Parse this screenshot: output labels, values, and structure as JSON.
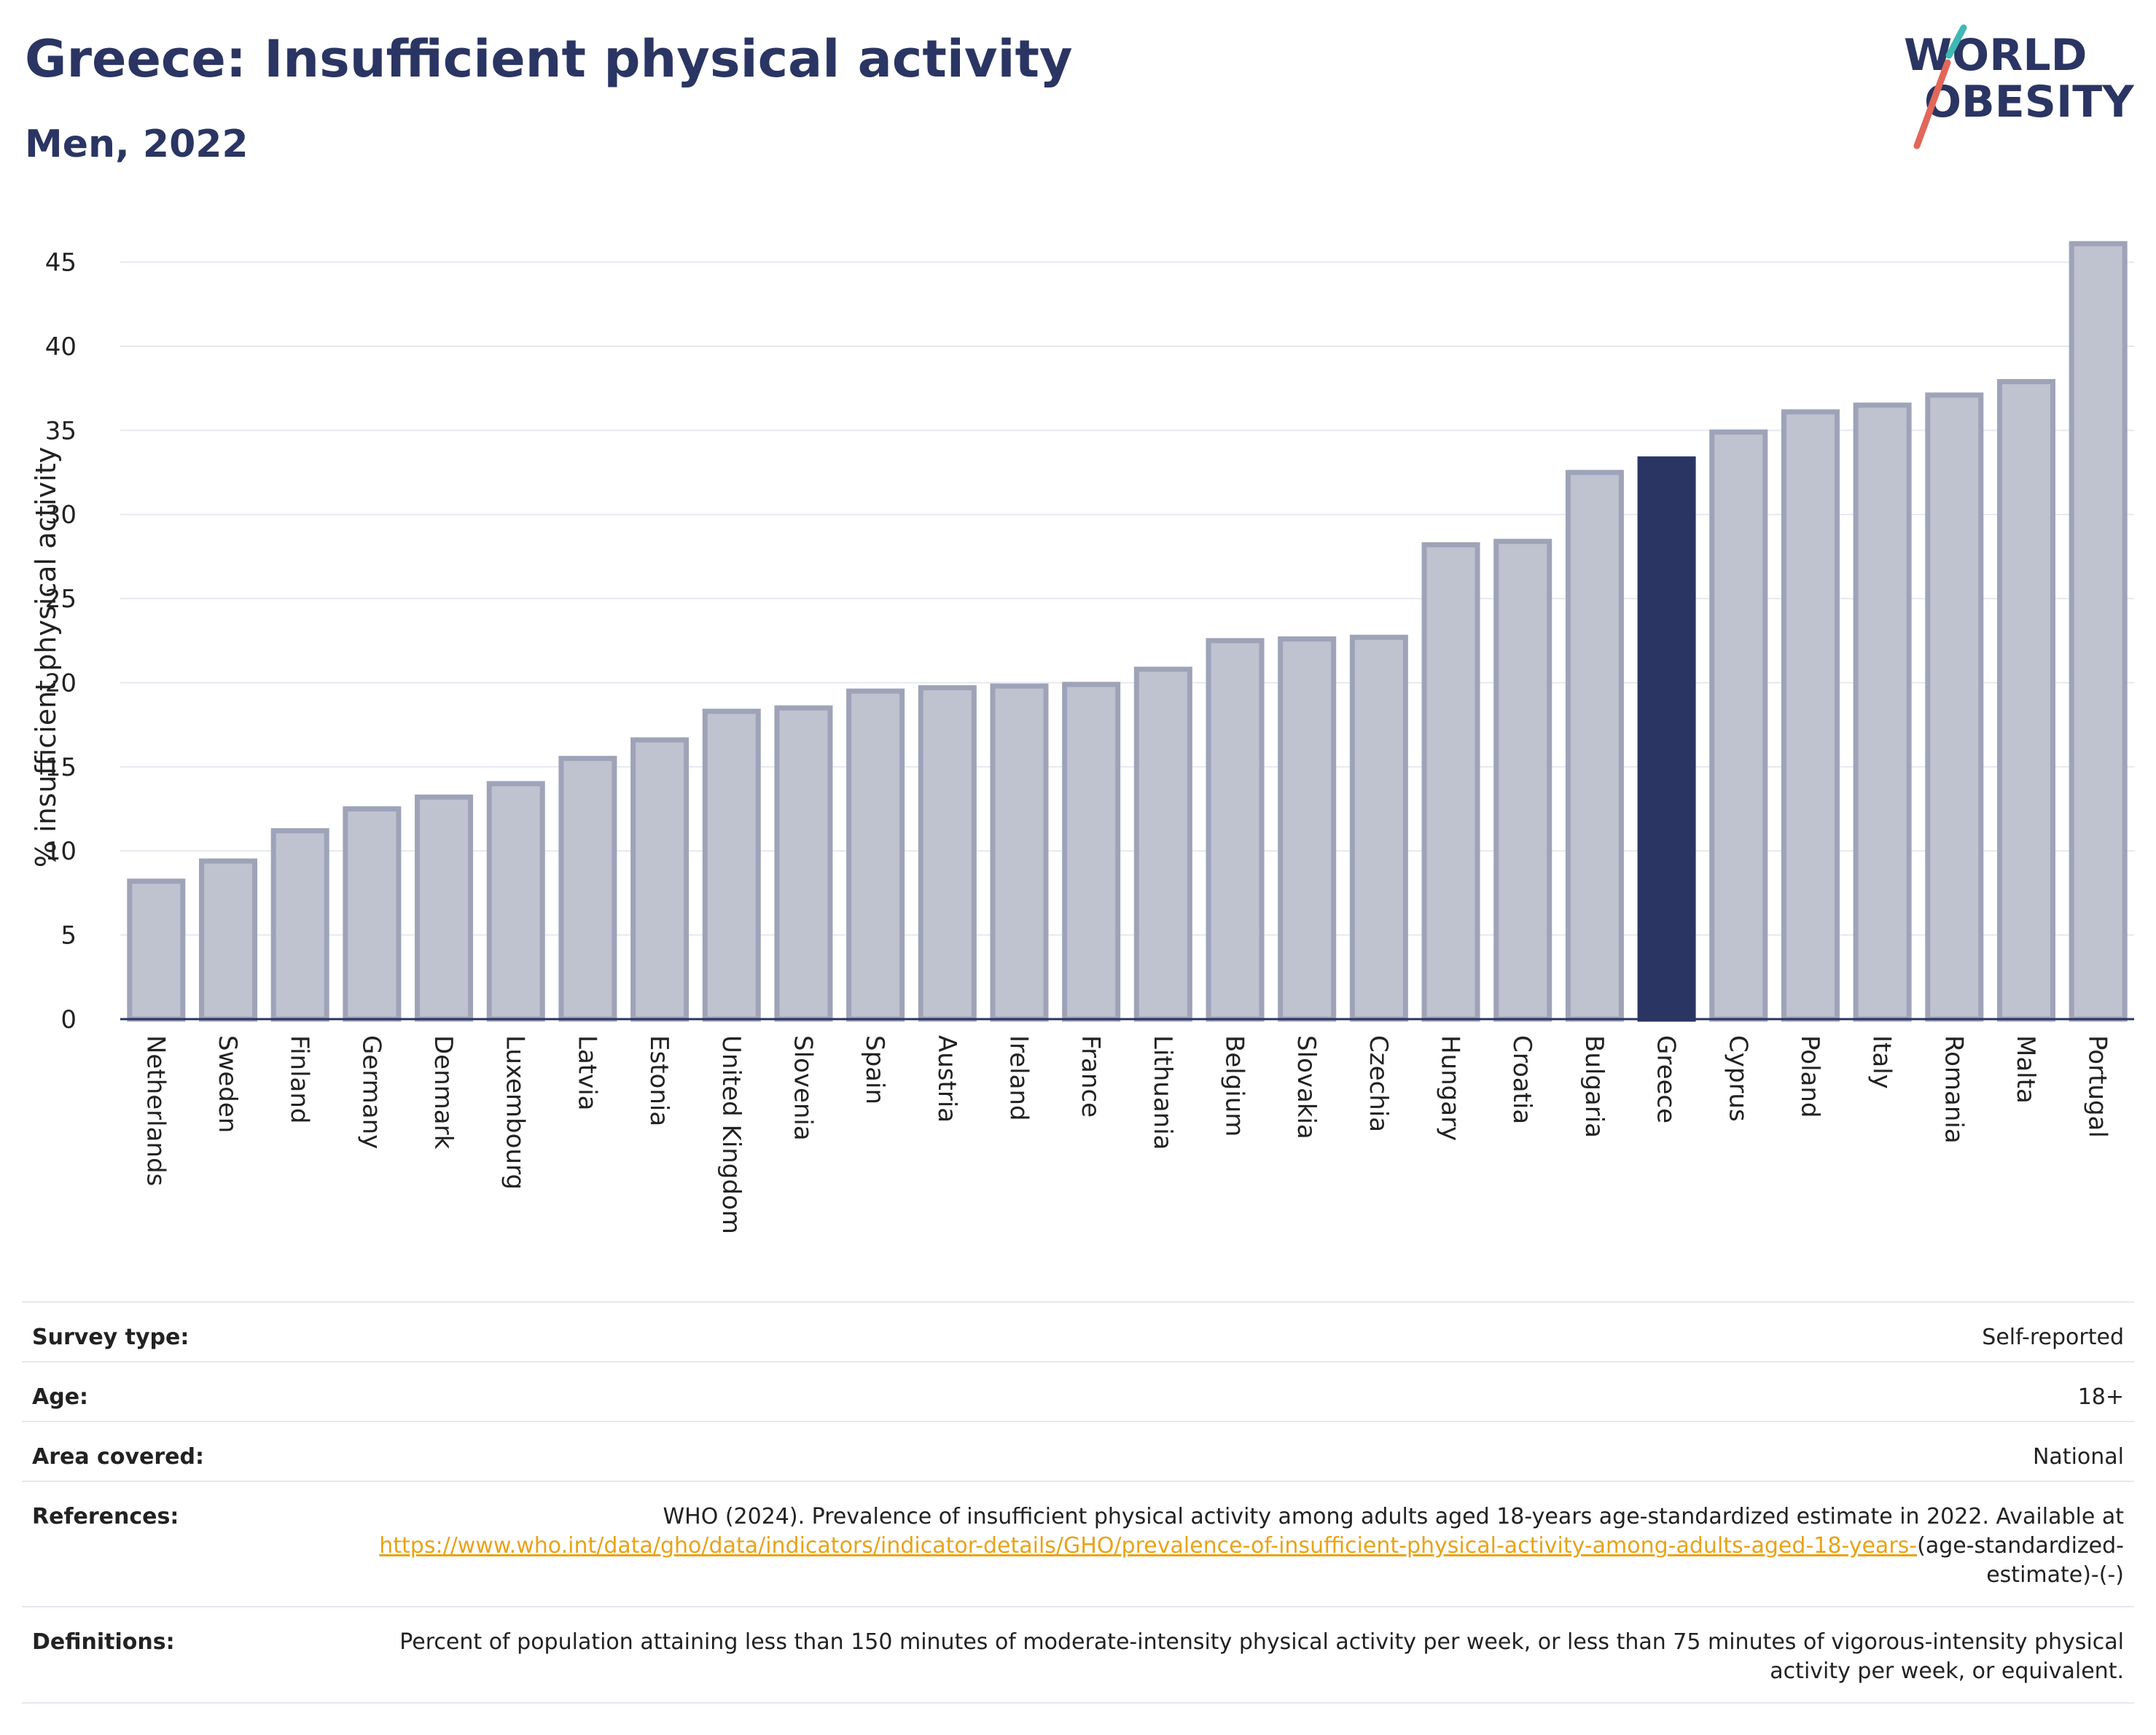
{
  "header": {
    "title": "Greece: Insufficient physical activity",
    "subtitle": "Men, 2022",
    "logo_line1": "WORLD",
    "logo_line2": "OBESITY"
  },
  "colors": {
    "bar": "#bfc2cf",
    "bar_stroke": "#9ea3b8",
    "highlight": "#2a3563",
    "grid": "#e6e8f0",
    "logo_teal": "#3fb8b3",
    "logo_red": "#e2675a"
  },
  "chart_data": {
    "type": "bar",
    "categories": [
      "Netherlands",
      "Sweden",
      "Finland",
      "Germany",
      "Denmark",
      "Luxembourg",
      "Latvia",
      "Estonia",
      "United Kingdom",
      "Slovenia",
      "Spain",
      "Austria",
      "Ireland",
      "France",
      "Lithuania",
      "Belgium",
      "Slovakia",
      "Czechia",
      "Hungary",
      "Croatia",
      "Bulgaria",
      "Greece",
      "Cyprus",
      "Poland",
      "Italy",
      "Romania",
      "Malta",
      "Portugal"
    ],
    "values": [
      8.2,
      9.4,
      11.2,
      12.5,
      13.2,
      14.0,
      15.5,
      16.6,
      18.3,
      18.5,
      19.5,
      19.7,
      19.8,
      19.9,
      20.8,
      22.5,
      22.6,
      22.7,
      28.2,
      28.4,
      32.5,
      33.3,
      34.9,
      36.1,
      36.5,
      37.1,
      37.9,
      46.1
    ],
    "highlight": "Greece",
    "ylabel": "% insufficient physical activity",
    "ylim": [
      0,
      46.5
    ],
    "yticks": [
      0,
      5,
      10,
      15,
      20,
      25,
      30,
      35,
      40,
      45
    ],
    "grid": true
  },
  "meta": {
    "survey_label": "Survey type:",
    "survey_value": "Self-reported",
    "age_label": "Age:",
    "age_value": "18+",
    "area_label": "Area covered:",
    "area_value": "National",
    "ref_label": "References:",
    "ref_text": "WHO (2024). Prevalence of insufficient physical activity among adults aged 18-years age-standardized estimate in 2022. Available at",
    "ref_link": "https://www.who.int/data/gho/data/indicators/indicator-details/GHO/prevalence-of-insufficient-physical-activity-among-adults-aged-18-years-",
    "ref_suffix": "(age-standardized-estimate)-(-)",
    "def_label": "Definitions:",
    "def_text": "Percent of population attaining less than 150 minutes of moderate-intensity physical activity per week, or less than 75 minutes of vigorous-intensity physical activity per week, or equivalent."
  }
}
